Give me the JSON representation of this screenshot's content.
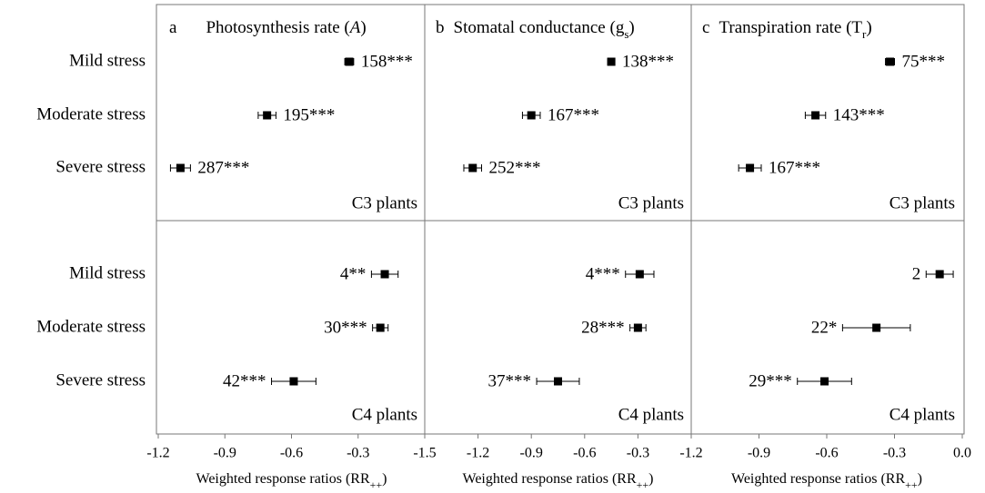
{
  "chart_data": [
    {
      "type": "forest",
      "panel": "a",
      "title": [
        "Photosynthesis rate (",
        "A",
        ")"
      ],
      "categories": [
        "Mild stress",
        "Moderate stress",
        "Severe stress"
      ],
      "xlabel": [
        "Weighted response ratios (RR",
        "++",
        ")"
      ],
      "xlim": [
        -1.2,
        0
      ],
      "xticks": [
        -1.2,
        -0.9,
        -0.6,
        -0.3
      ],
      "groups": [
        {
          "name": "C3 plants",
          "values": [
            -0.34,
            -0.71,
            -1.1
          ],
          "errors": [
            0.02,
            0.04,
            0.045
          ],
          "value_labels": [
            "158***",
            "195***",
            "287***"
          ]
        },
        {
          "name": "C4 plants",
          "values": [
            -0.18,
            -0.2,
            -0.59
          ],
          "errors": [
            0.06,
            0.035,
            0.1
          ],
          "value_labels": [
            "4**",
            "30***",
            "42***"
          ]
        }
      ]
    },
    {
      "type": "forest",
      "panel": "b",
      "title": [
        "Stomatal conductance (g",
        "s",
        ")"
      ],
      "xlabel": [
        "Weighted response ratios (RR",
        "++",
        ")"
      ],
      "xlim": [
        -1.5,
        0
      ],
      "xticks": [
        -1.5,
        -1.2,
        -0.9,
        -0.6,
        -0.3
      ],
      "groups": [
        {
          "name": "C3 plants",
          "values": [
            -0.45,
            -0.9,
            -1.23
          ],
          "errors": [
            0.02,
            0.05,
            0.05
          ],
          "value_labels": [
            "138***",
            "167***",
            "252***"
          ]
        },
        {
          "name": "C4 plants",
          "values": [
            -0.29,
            -0.3,
            -0.75
          ],
          "errors": [
            0.08,
            0.045,
            0.12
          ],
          "value_labels": [
            "4***",
            "28***",
            "37***"
          ]
        }
      ]
    },
    {
      "type": "forest",
      "panel": "c",
      "title": [
        "Transpiration rate (T",
        "r",
        ")"
      ],
      "xlabel": [
        "Weighted response ratios (RR",
        "++",
        ")"
      ],
      "xlim": [
        -1.2,
        0
      ],
      "xticks": [
        -1.2,
        -0.9,
        -0.6,
        -0.3,
        {
          "value": 0,
          "label": "0.0"
        }
      ],
      "groups": [
        {
          "name": "C3 plants",
          "values": [
            -0.32,
            -0.65,
            -0.94
          ],
          "errors": [
            0.02,
            0.045,
            0.05
          ],
          "value_labels": [
            "75***",
            "143***",
            "167***"
          ]
        },
        {
          "name": "C4 plants",
          "values": [
            -0.1,
            -0.38,
            -0.61
          ],
          "errors": [
            0.06,
            0.15,
            0.12
          ],
          "value_labels": [
            "2",
            "22*",
            "29***"
          ]
        }
      ]
    }
  ]
}
